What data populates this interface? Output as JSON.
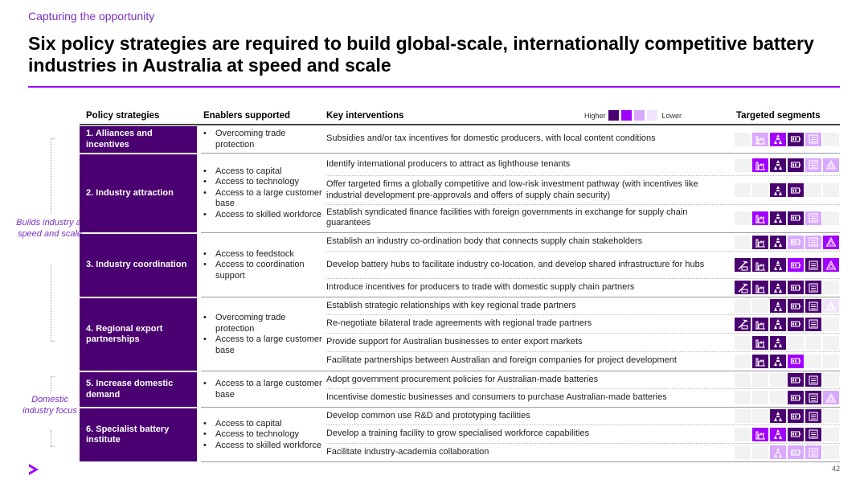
{
  "eyebrow": "Capturing the opportunity",
  "title": "Six policy strategies are required to build global-scale, internationally competitive battery industries in Australia at speed and scale",
  "side_labels": {
    "builds": "Builds industry at speed and scale",
    "domestic": "Domestic industry focus"
  },
  "headers": {
    "strategies": "Policy strategies",
    "enablers": "Enablers supported",
    "interventions": "Key interventions",
    "segments": "Targeted segments"
  },
  "legend": {
    "higher": "Higher",
    "lower": "Lower",
    "colors": [
      "#4a0070",
      "#a100ff",
      "#d9a8ff",
      "#efe4fa"
    ]
  },
  "segment_icons": [
    "mining-icon",
    "factory-icon",
    "chemicals-icon",
    "battery-icon",
    "battery-pack-icon",
    "recycle-icon"
  ],
  "strategies": [
    {
      "name": "1. Alliances and incentives",
      "enablers": [
        "Overcoming trade protection"
      ],
      "interventions": [
        {
          "text": "Subsidies and/or tax incentives for domestic producers, with local content conditions",
          "levels": [
            0,
            3,
            2,
            1,
            3,
            0
          ]
        }
      ]
    },
    {
      "name": "2. Industry attraction",
      "enablers": [
        "Access to capital",
        "Access to technology",
        "Access to a large customer base",
        "Access to skilled workforce"
      ],
      "interventions": [
        {
          "text": "Identify international producers to attract as lighthouse tenants",
          "levels": [
            0,
            2,
            1,
            1,
            3,
            3
          ]
        },
        {
          "text": "Offer targeted firms a globally competitive and low-risk investment pathway (with incentives like industrial development pre-approvals and offers of supply chain security)",
          "levels": [
            0,
            0,
            1,
            1,
            0,
            0
          ]
        },
        {
          "text": "Establish syndicated finance facilities with foreign governments in exchange for supply chain guarantees",
          "levels": [
            0,
            2,
            1,
            1,
            3,
            0
          ]
        }
      ]
    },
    {
      "name": "3. Industry coordination",
      "enablers": [
        "Access to feedstock",
        "Access to coordination support"
      ],
      "interventions": [
        {
          "text": "Establish an industry co-ordination body that connects supply chain stakeholders",
          "levels": [
            0,
            1,
            1,
            3,
            3,
            2
          ]
        },
        {
          "text": "Develop battery hubs to facilitate industry co-location, and develop shared infrastructure for hubs",
          "levels": [
            1,
            1,
            1,
            2,
            1,
            2
          ]
        },
        {
          "text": "Introduce incentives for producers to trade with domestic supply chain partners",
          "levels": [
            1,
            1,
            1,
            1,
            1,
            0
          ]
        }
      ]
    },
    {
      "name": "4. Regional export partnerships",
      "enablers": [
        "Overcoming trade protection",
        "Access to a large customer base"
      ],
      "interventions": [
        {
          "text": "Establish strategic relationships with key regional trade partners",
          "levels": [
            0,
            0,
            1,
            1,
            1,
            4
          ]
        },
        {
          "text": "Re-negotiate bilateral trade agreements with regional trade partners",
          "levels": [
            1,
            1,
            1,
            1,
            1,
            0
          ]
        },
        {
          "text": "Provide support for Australian businesses to enter export markets",
          "levels": [
            0,
            1,
            1,
            0,
            0,
            0
          ]
        },
        {
          "text": "Facilitate partnerships between Australian and foreign companies for project development",
          "levels": [
            0,
            1,
            1,
            2,
            0,
            0
          ]
        }
      ]
    },
    {
      "name": "5. Increase domestic demand",
      "enablers": [
        "Access to a large customer base"
      ],
      "interventions": [
        {
          "text": "Adopt government procurement policies for Australian-made batteries",
          "levels": [
            0,
            0,
            0,
            1,
            1,
            0
          ]
        },
        {
          "text": "Incentivise domestic businesses and consumers to purchase Australian-made batteries",
          "levels": [
            0,
            0,
            0,
            1,
            1,
            3
          ]
        }
      ]
    },
    {
      "name": "6. Specialist battery institute",
      "enablers": [
        "Access to capital",
        "Access to technology",
        "Access to skilled workforce"
      ],
      "interventions": [
        {
          "text": "Develop common use R&D and prototyping facilities",
          "levels": [
            0,
            0,
            1,
            1,
            1,
            0
          ]
        },
        {
          "text": "Develop a training facility to grow specialised workforce capabilities",
          "levels": [
            0,
            2,
            2,
            1,
            1,
            0
          ]
        },
        {
          "text": "Facilitate industry-academia collaboration",
          "levels": [
            0,
            0,
            3,
            3,
            3,
            0
          ]
        }
      ]
    }
  ],
  "page_number": "42"
}
